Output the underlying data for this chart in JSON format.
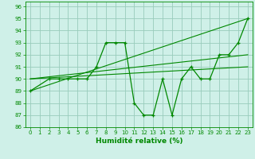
{
  "xlabel": "Humidité relative (%)",
  "background_color": "#cff0e8",
  "grid_color": "#99ccbb",
  "line_color": "#008800",
  "xlim": [
    -0.5,
    23.5
  ],
  "ylim": [
    86,
    96.4
  ],
  "xticks": [
    0,
    1,
    2,
    3,
    4,
    5,
    6,
    7,
    8,
    9,
    10,
    11,
    12,
    13,
    14,
    15,
    16,
    17,
    18,
    19,
    20,
    21,
    22,
    23
  ],
  "yticks": [
    86,
    87,
    88,
    89,
    90,
    91,
    92,
    93,
    94,
    95,
    96
  ],
  "series1": {
    "x": [
      0,
      2,
      3,
      4,
      5,
      6,
      7,
      8,
      9,
      10,
      11,
      12,
      13,
      14,
      15,
      16,
      17,
      18,
      19,
      20,
      21,
      22,
      23
    ],
    "y": [
      89,
      90,
      90,
      90,
      90,
      90,
      91,
      93,
      93,
      93,
      88,
      87,
      87,
      90,
      87,
      90,
      91,
      90,
      90,
      92,
      92,
      93,
      95
    ]
  },
  "series2": {
    "x": [
      0,
      23
    ],
    "y": [
      89,
      95
    ]
  },
  "series3": {
    "x": [
      0,
      23
    ],
    "y": [
      90,
      92
    ]
  },
  "series4": {
    "x": [
      0,
      23
    ],
    "y": [
      90,
      91
    ]
  }
}
